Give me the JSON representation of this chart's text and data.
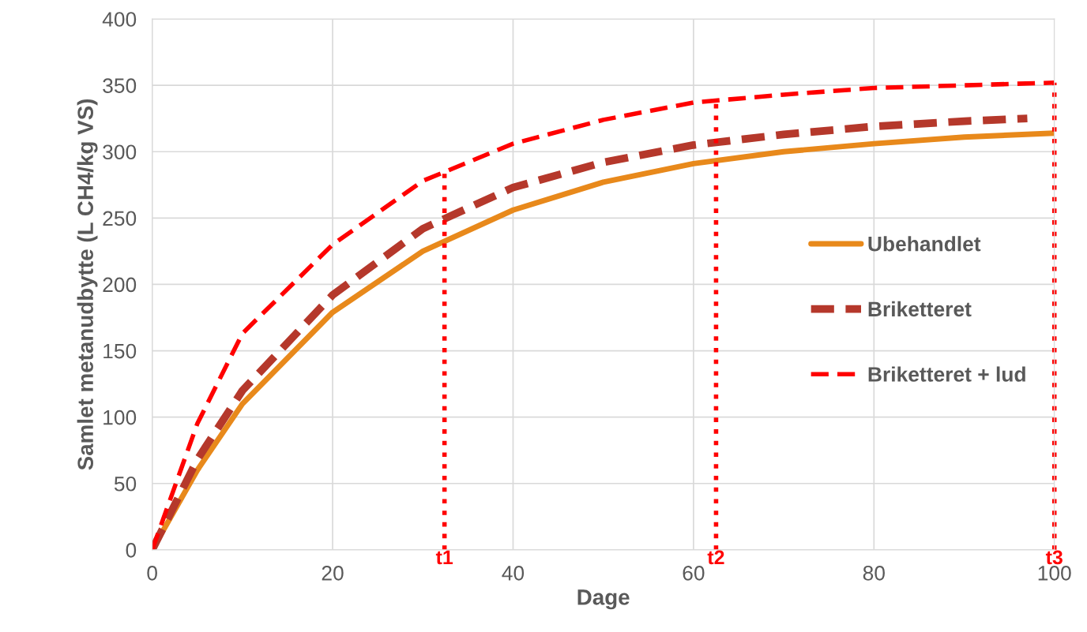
{
  "chart_data": {
    "type": "line",
    "xlabel": "Dage",
    "ylabel": "Samlet metanudbytte (L CH4/kg VS)",
    "xlim": [
      0,
      100
    ],
    "xticks": [
      0,
      20,
      40,
      60,
      80,
      100
    ],
    "ylim": [
      0,
      400
    ],
    "yticks": [
      0,
      50,
      100,
      150,
      200,
      250,
      300,
      350,
      400
    ],
    "grid": true,
    "legend": "right",
    "marker": "none",
    "series": [
      {
        "name": "Ubehandlet",
        "color": "#e8891b",
        "line_style": "solid",
        "x": [
          0,
          5,
          10,
          20,
          30,
          40,
          50,
          60,
          70,
          80,
          90,
          100
        ],
        "values": [
          0,
          60,
          110,
          179,
          225,
          256,
          277,
          291,
          300,
          306,
          311,
          314
        ]
      },
      {
        "name": "Briketteret",
        "color": "#b5382b",
        "line_style": "dashed",
        "x": [
          0,
          5,
          10,
          20,
          30,
          40,
          50,
          60,
          70,
          80,
          90,
          97
        ],
        "values": [
          0,
          68,
          120,
          192,
          242,
          273,
          292,
          305,
          313,
          319,
          323,
          325
        ]
      },
      {
        "name": "Briketteret + lud",
        "color": "#ff0000",
        "line_style": "dashed",
        "x": [
          0,
          5,
          10,
          20,
          30,
          40,
          50,
          60,
          70,
          80,
          90,
          100
        ],
        "values": [
          0,
          95,
          163,
          230,
          278,
          306,
          324,
          337,
          343,
          348,
          350,
          352
        ]
      }
    ],
    "ref_lines": [
      {
        "axis": "x",
        "value": 32.4,
        "label": "t1",
        "color": "#ff0000",
        "line_style": "dotted"
      },
      {
        "axis": "x",
        "value": 62.5,
        "label": "t2",
        "color": "#ff0000",
        "line_style": "dotted"
      },
      {
        "axis": "x",
        "value": 100,
        "label": "t3",
        "color": "#ff0000",
        "line_style": "dotted"
      }
    ]
  }
}
